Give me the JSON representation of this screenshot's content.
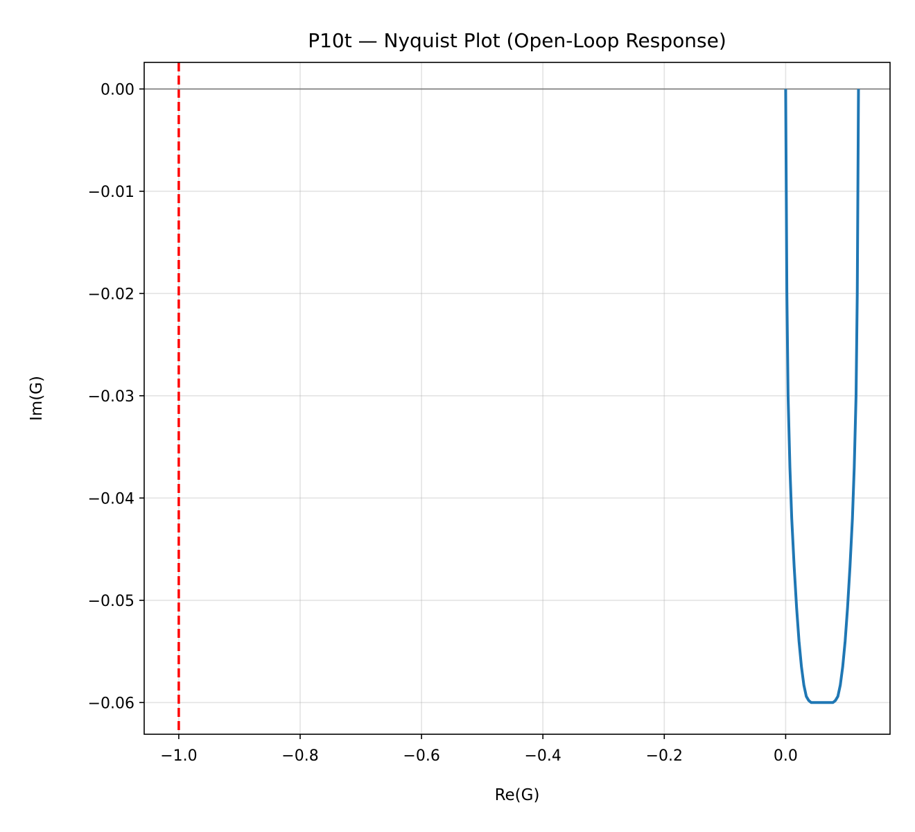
{
  "chart_data": {
    "type": "line",
    "title": "P10t — Nyquist Plot (Open-Loop Response)",
    "xlabel": "Re(G)",
    "ylabel": "Im(G)",
    "xlim": [
      -1.057,
      0.172
    ],
    "ylim": [
      -0.0631,
      0.0026
    ],
    "xticks": [
      -1.0,
      -0.8,
      -0.6,
      -0.4,
      -0.2,
      0.0
    ],
    "xtick_labels": [
      "−1.0",
      "−0.8",
      "−0.6",
      "−0.4",
      "−0.2",
      "0.0"
    ],
    "yticks": [
      0.0,
      -0.01,
      -0.02,
      -0.03,
      -0.04,
      -0.05,
      -0.06
    ],
    "ytick_labels": [
      "0.00",
      "−0.01",
      "−0.02",
      "−0.03",
      "−0.04",
      "−0.05",
      "−0.06"
    ],
    "grid": true,
    "series": [
      {
        "color": "#1f77b4",
        "x": [
          0.0,
          0.0005,
          0.001,
          0.002,
          0.004,
          0.007,
          0.01,
          0.014,
          0.018,
          0.022,
          0.026,
          0.03,
          0.034,
          0.038,
          0.042,
          0.046,
          0.05,
          0.054,
          0.058,
          0.06,
          0.062,
          0.066,
          0.07,
          0.074,
          0.078,
          0.082,
          0.086,
          0.09,
          0.094,
          0.098,
          0.102,
          0.106,
          0.11,
          0.113,
          0.116,
          0.118,
          0.119,
          0.1195,
          0.12
        ],
        "y": [
          0.0,
          -0.005,
          -0.01,
          -0.02,
          -0.03,
          -0.037,
          -0.042,
          -0.0467,
          -0.0507,
          -0.054,
          -0.0565,
          -0.0583,
          -0.0594,
          -0.0598,
          -0.06,
          -0.06,
          -0.06,
          -0.06,
          -0.06,
          -0.06,
          -0.06,
          -0.06,
          -0.06,
          -0.06,
          -0.06,
          -0.0598,
          -0.0594,
          -0.0583,
          -0.0565,
          -0.054,
          -0.0507,
          -0.0467,
          -0.042,
          -0.037,
          -0.03,
          -0.02,
          -0.01,
          -0.005,
          0.0
        ]
      }
    ],
    "reference_lines": [
      {
        "orientation": "vertical",
        "x": -1.0,
        "color": "#ff0000",
        "style": "dashed"
      },
      {
        "orientation": "horizontal",
        "y": 0.0,
        "color": "#808080",
        "style": "solid"
      }
    ]
  }
}
